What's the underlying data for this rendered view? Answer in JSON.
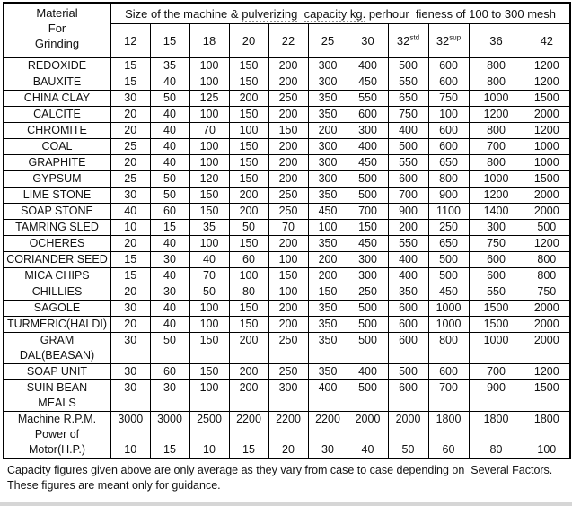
{
  "table": {
    "material_header_lines": [
      "Material",
      "For",
      "Grinding"
    ],
    "size_title_segments": [
      {
        "text": "Size of the machine & ",
        "dotted": false
      },
      {
        "text": "pulverizing",
        "dotted": true
      },
      {
        "text": "  ",
        "dotted": false
      },
      {
        "text": "capacity kg.",
        "dotted": true
      },
      {
        "text": " perhour  fieness of 100 to 300 mesh",
        "dotted": false
      }
    ],
    "size_columns": [
      {
        "base": "12",
        "sup": ""
      },
      {
        "base": "15",
        "sup": ""
      },
      {
        "base": "18",
        "sup": ""
      },
      {
        "base": "20",
        "sup": ""
      },
      {
        "base": "22",
        "sup": ""
      },
      {
        "base": "25",
        "sup": ""
      },
      {
        "base": "30",
        "sup": ""
      },
      {
        "base": "32",
        "sup": "std"
      },
      {
        "base": "32",
        "sup": "sup"
      },
      {
        "base": "36",
        "sup": ""
      },
      {
        "base": "42",
        "sup": ""
      }
    ],
    "rows": [
      {
        "material_lines": [
          "REDOXIDE"
        ],
        "values": [
          "15",
          "35",
          "100",
          "150",
          "200",
          "300",
          "400",
          "500",
          "600",
          "800",
          "1200"
        ]
      },
      {
        "material_lines": [
          "BAUXITE"
        ],
        "values": [
          "15",
          "40",
          "100",
          "150",
          "200",
          "300",
          "450",
          "550",
          "600",
          "800",
          "1200"
        ]
      },
      {
        "material_lines": [
          "CHINA CLAY"
        ],
        "values": [
          "30",
          "50",
          "125",
          "200",
          "250",
          "350",
          "550",
          "650",
          "750",
          "1000",
          "1500"
        ]
      },
      {
        "material_lines": [
          "CALCITE"
        ],
        "values": [
          "20",
          "40",
          "100",
          "150",
          "200",
          "350",
          "600",
          "750",
          "100",
          "1200",
          "2000"
        ]
      },
      {
        "material_lines": [
          "CHROMITE"
        ],
        "values": [
          "20",
          "40",
          "70",
          "100",
          "150",
          "200",
          "300",
          "400",
          "600",
          "800",
          "1200"
        ]
      },
      {
        "material_lines": [
          "COAL"
        ],
        "values": [
          "25",
          "40",
          "100",
          "150",
          "200",
          "300",
          "400",
          "500",
          "600",
          "700",
          "1000"
        ]
      },
      {
        "material_lines": [
          "GRAPHITE"
        ],
        "values": [
          "20",
          "40",
          "100",
          "150",
          "200",
          "300",
          "450",
          "550",
          "650",
          "800",
          "1000"
        ]
      },
      {
        "material_lines": [
          "GYPSUM"
        ],
        "values": [
          "25",
          "50",
          "120",
          "150",
          "200",
          "300",
          "500",
          "600",
          "800",
          "1000",
          "1500"
        ]
      },
      {
        "material_lines": [
          "LIME STONE"
        ],
        "values": [
          "30",
          "50",
          "150",
          "200",
          "250",
          "350",
          "500",
          "700",
          "900",
          "1200",
          "2000"
        ]
      },
      {
        "material_lines": [
          "SOAP STONE"
        ],
        "values": [
          "40",
          "60",
          "150",
          "200",
          "250",
          "450",
          "700",
          "900",
          "1100",
          "1400",
          "2000"
        ]
      },
      {
        "material_lines": [
          "TAMRING SLED"
        ],
        "values": [
          "10",
          "15",
          "35",
          "50",
          "70",
          "100",
          "150",
          "200",
          "250",
          "300",
          "500"
        ]
      },
      {
        "material_lines": [
          "OCHERES"
        ],
        "values": [
          "20",
          "40",
          "100",
          "150",
          "200",
          "350",
          "450",
          "550",
          "650",
          "750",
          "1200"
        ]
      },
      {
        "material_lines": [
          "CORIANDER SEED"
        ],
        "values": [
          "15",
          "30",
          "40",
          "60",
          "100",
          "200",
          "300",
          "400",
          "500",
          "600",
          "800"
        ]
      },
      {
        "material_lines": [
          "MICA CHIPS"
        ],
        "values": [
          "15",
          "40",
          "70",
          "100",
          "150",
          "200",
          "300",
          "400",
          "500",
          "600",
          "800"
        ]
      },
      {
        "material_lines": [
          "CHILLIES"
        ],
        "values": [
          "20",
          "30",
          "50",
          "80",
          "100",
          "150",
          "250",
          "350",
          "450",
          "550",
          "750"
        ]
      },
      {
        "material_lines": [
          "SAGOLE"
        ],
        "values": [
          "30",
          "40",
          "100",
          "150",
          "200",
          "350",
          "500",
          "600",
          "1000",
          "1500",
          "2000"
        ]
      },
      {
        "material_lines": [
          "TURMERIC(HALDI)"
        ],
        "values": [
          "20",
          "40",
          "100",
          "150",
          "200",
          "350",
          "500",
          "600",
          "1000",
          "1500",
          "2000"
        ]
      },
      {
        "material_lines": [
          "GRAM",
          "DAL(BEASAN)"
        ],
        "values": [
          "30",
          "50",
          "150",
          "200",
          "250",
          "350",
          "500",
          "600",
          "800",
          "1000",
          "2000"
        ]
      },
      {
        "material_lines": [
          "SOAP UNIT"
        ],
        "values": [
          "30",
          "60",
          "150",
          "200",
          "250",
          "350",
          "400",
          "500",
          "600",
          "700",
          "1200"
        ]
      },
      {
        "material_lines": [
          "SUIN BEAN",
          "MEALS"
        ],
        "values": [
          "30",
          "30",
          "100",
          "200",
          "300",
          "400",
          "500",
          "600",
          "700",
          "900",
          "1500"
        ]
      }
    ],
    "machine_row": {
      "label_lines": [
        "Machine R.P.M.",
        "Power of",
        "Motor(H.P.)"
      ],
      "rpm_values": [
        "3000",
        "3000",
        "2500",
        "2200",
        "2200",
        "2200",
        "2000",
        "2000",
        "1800",
        "1800",
        "1800"
      ],
      "hp_values": [
        "10",
        "15",
        "10",
        "15",
        "20",
        "30",
        "40",
        "50",
        "60",
        "80",
        "100"
      ]
    }
  },
  "footer": {
    "line1": "Capacity figures given above are only average as they vary from case to case depending on  Several Factors.",
    "line2": "These figures are meant only for guidance."
  }
}
